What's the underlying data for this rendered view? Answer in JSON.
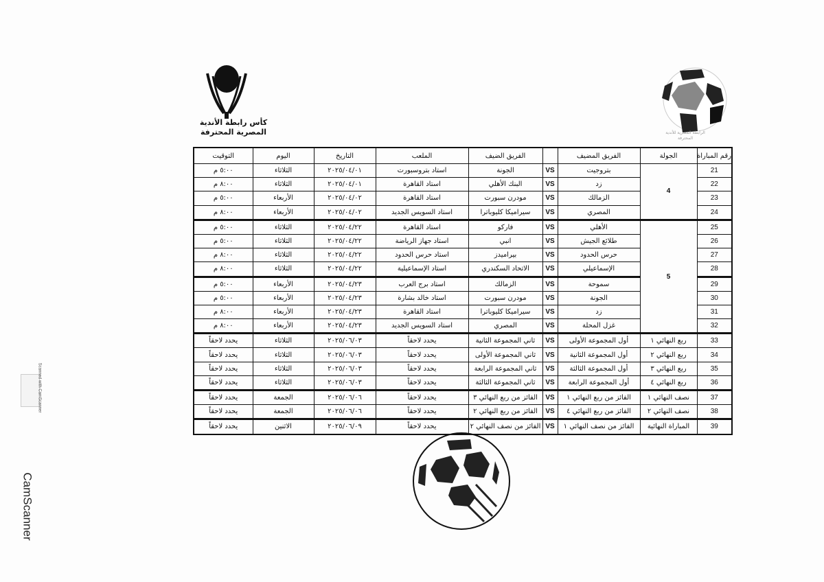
{
  "header": {
    "left_logo_text": "كأس رابطة الأندية المصرية المحترفة",
    "right_logo_text": "الرابطة المصرية للأندية المحترفة",
    "stamp_text": "رابطة الأندية المصرية المحترفة لكرة القدم"
  },
  "table": {
    "columns": {
      "match_no": "رقم المباراة",
      "round": "الجولة",
      "host": "الفريق المضيف",
      "vs": "",
      "guest": "الفريق الضيف",
      "stadium": "الملعب",
      "date": "التاريخ",
      "day": "اليوم",
      "time": "التوقيت"
    },
    "rounds": {
      "r4": "4",
      "r5": "5"
    },
    "rows": [
      {
        "no": "21",
        "host": "بتروجيت",
        "vs": "VS",
        "guest": "الجونة",
        "stadium": "استاد بتروسبورت",
        "date": "٢٠٢٥/٠٤/٠١",
        "day": "الثلاثاء",
        "time": "٥:٠٠ م"
      },
      {
        "no": "22",
        "host": "زد",
        "vs": "VS",
        "guest": "البنك الأهلي",
        "stadium": "استاد القاهرة",
        "date": "٢٠٢٥/٠٤/٠١",
        "day": "الثلاثاء",
        "time": "٨:٠٠ م"
      },
      {
        "no": "23",
        "host": "الزمالك",
        "vs": "VS",
        "guest": "مودرن سبورت",
        "stadium": "استاد القاهرة",
        "date": "٢٠٢٥/٠٤/٠٢",
        "day": "الأربعاء",
        "time": "٥:٠٠ م"
      },
      {
        "no": "24",
        "host": "المصري",
        "vs": "VS",
        "guest": "سيراميكا كليوباترا",
        "stadium": "استاد السويس الجديد",
        "date": "٢٠٢٥/٠٤/٠٢",
        "day": "الأربعاء",
        "time": "٨:٠٠ م"
      },
      {
        "no": "25",
        "host": "الأهلي",
        "vs": "VS",
        "guest": "فاركو",
        "stadium": "استاد القاهرة",
        "date": "٢٠٢٥/٠٤/٢٢",
        "day": "الثلاثاء",
        "time": "٥:٠٠ م"
      },
      {
        "no": "26",
        "host": "طلائع الجيش",
        "vs": "VS",
        "guest": "انبي",
        "stadium": "استاد جهاز الرياضة",
        "date": "٢٠٢٥/٠٤/٢٢",
        "day": "الثلاثاء",
        "time": "٥:٠٠ م"
      },
      {
        "no": "27",
        "host": "حرس الحدود",
        "vs": "VS",
        "guest": "بيراميدز",
        "stadium": "استاد حرس الحدود",
        "date": "٢٠٢٥/٠٤/٢٢",
        "day": "الثلاثاء",
        "time": "٨:٠٠ م"
      },
      {
        "no": "28",
        "host": "الإسماعيلي",
        "vs": "VS",
        "guest": "الاتحاد السكندري",
        "stadium": "استاد الإسماعيلية",
        "date": "٢٠٢٥/٠٤/٢٢",
        "day": "الثلاثاء",
        "time": "٨:٠٠ م"
      },
      {
        "no": "29",
        "host": "سموحة",
        "vs": "VS",
        "guest": "الزمالك",
        "stadium": "استاد برج العرب",
        "date": "٢٠٢٥/٠٤/٢٣",
        "day": "الأربعاء",
        "time": "٥:٠٠ م"
      },
      {
        "no": "30",
        "host": "الجونة",
        "vs": "VS",
        "guest": "مودرن سبورت",
        "stadium": "استاد خالد بشارة",
        "date": "٢٠٢٥/٠٤/٢٣",
        "day": "الأربعاء",
        "time": "٥:٠٠ م"
      },
      {
        "no": "31",
        "host": "زد",
        "vs": "VS",
        "guest": "سيراميكا كليوباترا",
        "stadium": "استاد القاهرة",
        "date": "٢٠٢٥/٠٤/٢٣",
        "day": "الأربعاء",
        "time": "٨:٠٠ م"
      },
      {
        "no": "32",
        "host": "غزل المحلة",
        "vs": "VS",
        "guest": "المصري",
        "stadium": "استاد السويس الجديد",
        "date": "٢٠٢٥/٠٤/٢٣",
        "day": "الأربعاء",
        "time": "٨:٠٠ م"
      },
      {
        "no": "33",
        "round": "ربع النهائي ١",
        "host": "أول المجموعة الأولى",
        "vs": "VS",
        "guest": "ثاني المجموعة الثانية",
        "stadium": "يحدد لاحقاً",
        "date": "٢٠٢٥/٠٦/٠٣",
        "day": "الثلاثاء",
        "time": "يحدد لاحقاً"
      },
      {
        "no": "34",
        "round": "ربع النهائي ٢",
        "host": "أول المجموعة الثانية",
        "vs": "VS",
        "guest": "ثاني المجموعة الأولى",
        "stadium": "يحدد لاحقاً",
        "date": "٢٠٢٥/٠٦/٠٣",
        "day": "الثلاثاء",
        "time": "يحدد لاحقاً"
      },
      {
        "no": "35",
        "round": "ربع النهائي ٣",
        "host": "أول المجموعة الثالثة",
        "vs": "VS",
        "guest": "ثاني المجموعة الرابعة",
        "stadium": "يحدد لاحقاً",
        "date": "٢٠٢٥/٠٦/٠٣",
        "day": "الثلاثاء",
        "time": "يحدد لاحقاً"
      },
      {
        "no": "36",
        "round": "ربع النهائي ٤",
        "host": "أول المجموعة الرابعة",
        "vs": "VS",
        "guest": "ثاني المجموعة الثالثة",
        "stadium": "يحدد لاحقاً",
        "date": "٢٠٢٥/٠٦/٠٣",
        "day": "الثلاثاء",
        "time": "يحدد لاحقاً"
      },
      {
        "no": "37",
        "round": "نصف النهائي ١",
        "host": "الفائز من ربع النهائي ١",
        "vs": "VS",
        "guest": "الفائز من ربع النهائي ٣",
        "stadium": "يحدد لاحقاً",
        "date": "٢٠٢٥/٠٦/٠٦",
        "day": "الجمعة",
        "time": "يحدد لاحقاً"
      },
      {
        "no": "38",
        "round": "نصف النهائي ٢",
        "host": "الفائز من ربع النهائي ٤",
        "vs": "VS",
        "guest": "الفائز من ربع النهائي ٢",
        "stadium": "يحدد لاحقاً",
        "date": "٢٠٢٥/٠٦/٠٦",
        "day": "الجمعة",
        "time": "يحدد لاحقاً"
      },
      {
        "no": "39",
        "round": "المباراة النهائية",
        "host": "الفائز من نصف النهائي ١",
        "vs": "VS",
        "guest": "الفائز من نصف النهائي ٢",
        "stadium": "يحدد لاحقاً",
        "date": "٢٠٢٥/٠٦/٠٩",
        "day": "الاثنين",
        "time": "يحدد لاحقاً"
      }
    ]
  },
  "watermark": {
    "badge_text": "Scanned with CamScanner",
    "side_text": "CamScanner"
  }
}
